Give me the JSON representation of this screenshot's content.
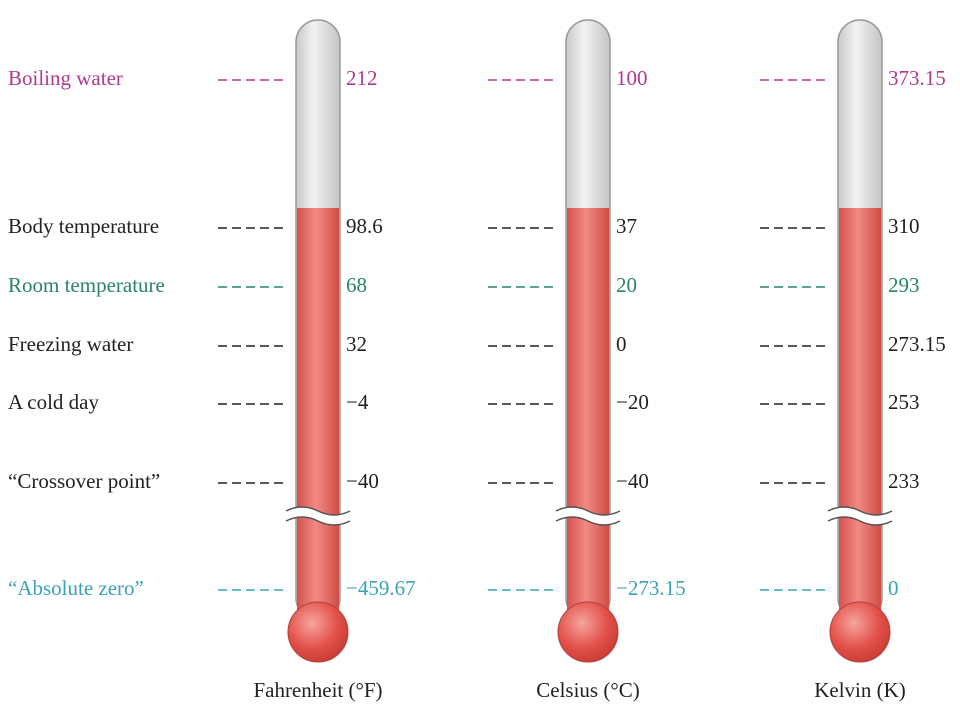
{
  "scales": [
    "Fahrenheit (°F)",
    "Celsius (°C)",
    "Kelvin (K)"
  ],
  "rows": [
    {
      "label": "Boiling water",
      "values": [
        "212",
        "100",
        "373.15"
      ]
    },
    {
      "label": "Body temperature",
      "values": [
        "98.6",
        "37",
        "310"
      ]
    },
    {
      "label": "Room temperature",
      "values": [
        "68",
        "20",
        "293"
      ]
    },
    {
      "label": "Freezing water",
      "values": [
        "32",
        "0",
        "273.15"
      ]
    },
    {
      "label": "A cold day",
      "values": [
        "−4",
        "−20",
        "253"
      ]
    },
    {
      "label": "“Crossover point”",
      "values": [
        "−40",
        "−40",
        "233"
      ]
    },
    {
      "label": "“Absolute zero”",
      "values": [
        "−459.67",
        "−273.15",
        "0"
      ]
    }
  ]
}
